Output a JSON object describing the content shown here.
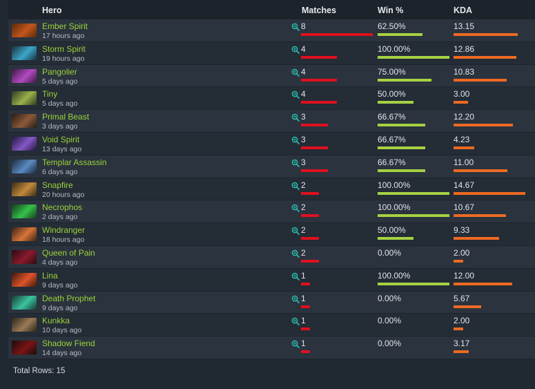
{
  "header": {
    "hero": "Hero",
    "matches": "Matches",
    "win": "Win %",
    "kda": "KDA"
  },
  "colors": {
    "matches_bar": "#e0101e",
    "win_bar": "#a6d243",
    "kda_bar": "#ee6a22",
    "hero_name": "#9cd33a",
    "zoom_icon": "#2bb5a8"
  },
  "rows": [
    {
      "hero": "Ember Spirit",
      "time": "17 hours ago",
      "matches": "8",
      "win": "62.50%",
      "kda": "13.15",
      "matches_n": 8,
      "win_n": 62.5,
      "kda_n": 13.15,
      "portrait": [
        "#5c2a0c",
        "#c2561c"
      ]
    },
    {
      "hero": "Storm Spirit",
      "time": "19 hours ago",
      "matches": "4",
      "win": "100.00%",
      "kda": "12.86",
      "matches_n": 4,
      "win_n": 100,
      "kda_n": 12.86,
      "portrait": [
        "#17303e",
        "#3ca6c8"
      ]
    },
    {
      "hero": "Pangolier",
      "time": "5 days ago",
      "matches": "4",
      "win": "75.00%",
      "kda": "10.83",
      "matches_n": 4,
      "win_n": 75,
      "kda_n": 10.83,
      "portrait": [
        "#3c1a40",
        "#b34ac2"
      ]
    },
    {
      "hero": "Tiny",
      "time": "5 days ago",
      "matches": "4",
      "win": "50.00%",
      "kda": "3.00",
      "matches_n": 4,
      "win_n": 50,
      "kda_n": 3.0,
      "portrait": [
        "#2e3a20",
        "#9bb04a"
      ]
    },
    {
      "hero": "Primal Beast",
      "time": "3 days ago",
      "matches": "3",
      "win": "66.67%",
      "kda": "12.20",
      "matches_n": 3,
      "win_n": 66.67,
      "kda_n": 12.2,
      "portrait": [
        "#2a1c14",
        "#8a5a3a"
      ]
    },
    {
      "hero": "Void Spirit",
      "time": "13 days ago",
      "matches": "3",
      "win": "66.67%",
      "kda": "4.23",
      "matches_n": 3,
      "win_n": 66.67,
      "kda_n": 4.23,
      "portrait": [
        "#24163c",
        "#8458c6"
      ]
    },
    {
      "hero": "Templar Assassin",
      "time": "6 days ago",
      "matches": "3",
      "win": "66.67%",
      "kda": "11.00",
      "matches_n": 3,
      "win_n": 66.67,
      "kda_n": 11.0,
      "portrait": [
        "#1c2a3c",
        "#5a8ac2"
      ]
    },
    {
      "hero": "Snapfire",
      "time": "20 hours ago",
      "matches": "2",
      "win": "100.00%",
      "kda": "14.67",
      "matches_n": 2,
      "win_n": 100,
      "kda_n": 14.67,
      "portrait": [
        "#3a2a14",
        "#c28a3c"
      ]
    },
    {
      "hero": "Necrophos",
      "time": "2 days ago",
      "matches": "2",
      "win": "100.00%",
      "kda": "10.67",
      "matches_n": 2,
      "win_n": 100,
      "kda_n": 10.67,
      "portrait": [
        "#143a1c",
        "#36c24a"
      ]
    },
    {
      "hero": "Windranger",
      "time": "18 hours ago",
      "matches": "2",
      "win": "50.00%",
      "kda": "9.33",
      "matches_n": 2,
      "win_n": 50,
      "kda_n": 9.33,
      "portrait": [
        "#3a2414",
        "#d8743a"
      ]
    },
    {
      "hero": "Queen of Pain",
      "time": "4 days ago",
      "matches": "2",
      "win": "0.00%",
      "kda": "2.00",
      "matches_n": 2,
      "win_n": 0,
      "kda_n": 2.0,
      "portrait": [
        "#2a0c14",
        "#8a1a2c"
      ]
    },
    {
      "hero": "Lina",
      "time": "9 days ago",
      "matches": "1",
      "win": "100.00%",
      "kda": "12.00",
      "matches_n": 1,
      "win_n": 100,
      "kda_n": 12.0,
      "portrait": [
        "#3c1a0c",
        "#e0542a"
      ]
    },
    {
      "hero": "Death Prophet",
      "time": "9 days ago",
      "matches": "1",
      "win": "0.00%",
      "kda": "5.67",
      "matches_n": 1,
      "win_n": 0,
      "kda_n": 5.67,
      "portrait": [
        "#143a30",
        "#3cc2a0"
      ]
    },
    {
      "hero": "Kunkka",
      "time": "10 days ago",
      "matches": "1",
      "win": "0.00%",
      "kda": "2.00",
      "matches_n": 1,
      "win_n": 0,
      "kda_n": 2.0,
      "portrait": [
        "#2c2418",
        "#9a7a56"
      ]
    },
    {
      "hero": "Shadow Fiend",
      "time": "14 days ago",
      "matches": "1",
      "win": "0.00%",
      "kda": "3.17",
      "matches_n": 1,
      "win_n": 0,
      "kda_n": 3.17,
      "portrait": [
        "#1a0c0c",
        "#7a1414"
      ]
    }
  ],
  "footer": {
    "total_rows": "Total Rows: 15"
  }
}
